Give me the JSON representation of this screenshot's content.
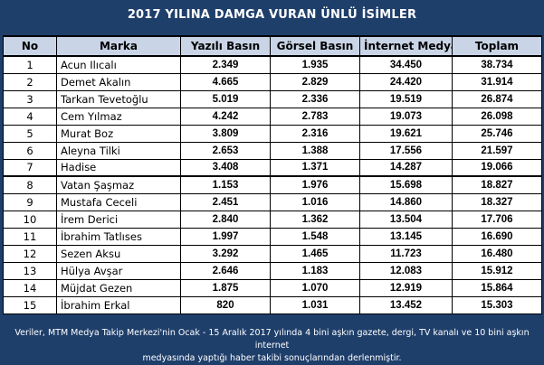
{
  "chart_data": {
    "type": "table",
    "title": "2017 YILINA DAMGA VURAN ÜNLÜ İSİMLER",
    "columns": [
      "No",
      "Marka",
      "Yazılı Basın",
      "Görsel Basın",
      "İnternet Medyası",
      "Toplam"
    ],
    "rows": [
      [
        "1",
        "Acun Ilıcalı",
        "2.349",
        "1.935",
        "34.450",
        "38.734"
      ],
      [
        "2",
        "Demet Akalın",
        "4.665",
        "2.829",
        "24.420",
        "31.914"
      ],
      [
        "3",
        "Tarkan Tevetoğlu",
        "5.019",
        "2.336",
        "19.519",
        "26.874"
      ],
      [
        "4",
        "Cem Yılmaz",
        "4.242",
        "2.783",
        "19.073",
        "26.098"
      ],
      [
        "5",
        "Murat Boz",
        "3.809",
        "2.316",
        "19.621",
        "25.746"
      ],
      [
        "6",
        "Aleyna Tilki",
        "2.653",
        "1.388",
        "17.556",
        "21.597"
      ],
      [
        "7",
        "Hadise",
        "3.408",
        "1.371",
        "14.287",
        "19.066"
      ],
      [
        "8",
        "Vatan Şaşmaz",
        "1.153",
        "1.976",
        "15.698",
        "18.827"
      ],
      [
        "9",
        "Mustafa Ceceli",
        "2.451",
        "1.016",
        "14.860",
        "18.327"
      ],
      [
        "10",
        "İrem Derici",
        "2.840",
        "1.362",
        "13.504",
        "17.706"
      ],
      [
        "11",
        "İbrahim Tatlıses",
        "1.997",
        "1.548",
        "13.145",
        "16.690"
      ],
      [
        "12",
        "Sezen Aksu",
        "3.292",
        "1.465",
        "11.723",
        "16.480"
      ],
      [
        "13",
        "Hülya Avşar",
        "2.646",
        "1.183",
        "12.083",
        "15.912"
      ],
      [
        "14",
        "Müjdat Gezen",
        "1.875",
        "1.070",
        "12.919",
        "15.864"
      ],
      [
        "15",
        "İbrahim Erkal",
        "820",
        "1.031",
        "13.452",
        "15.303"
      ]
    ]
  },
  "footnote": {
    "line1": "Veriler, MTM Medya Takip Merkezi'nin Ocak - 15 Aralık 2017 yılında 4 bini aşkın gazete, dergi, TV kanalı ve 10 bini aşkın internet",
    "line2": "medyasında yaptığı haber takibi sonuçlarından derlenmiştir."
  },
  "colors": {
    "background": "#1f3f6b",
    "header_fill": "#c9d4e6",
    "title_text": "#ffffff"
  }
}
